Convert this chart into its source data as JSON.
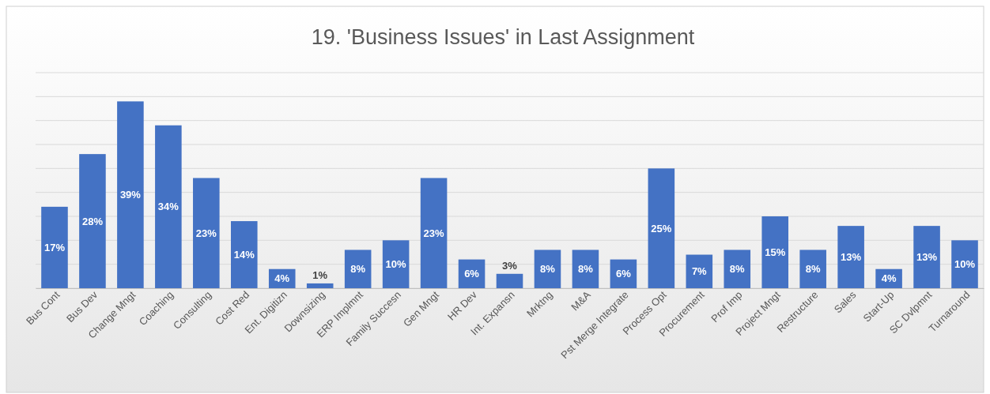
{
  "chart_data": {
    "type": "bar",
    "title": "19. 'Business Issues' in Last Assignment",
    "categories": [
      "Bus Cont",
      "Bus Dev",
      "Change Mngt",
      "Coaching",
      "Consulting",
      "Cost Red",
      "Ent. Digitizn",
      "Downsizing",
      "ERP Implmnt",
      "Family Succesn",
      "Gen Mngt",
      "HR Dev",
      "Int. Expansn",
      "Mrktng",
      "M&A",
      "Pst Merge Integrate",
      "Process Opt",
      "Procurement",
      "Prof Imp",
      "Project Mngt",
      "Restructure",
      "Sales",
      "Start-Up",
      "SC Dvlpmnt",
      "Turnaround"
    ],
    "values": [
      17,
      28,
      39,
      34,
      23,
      14,
      4,
      1,
      8,
      10,
      23,
      6,
      3,
      8,
      8,
      6,
      25,
      7,
      8,
      15,
      8,
      13,
      4,
      13,
      10
    ],
    "value_labels": [
      "17%",
      "28%",
      "39%",
      "34%",
      "23%",
      "14%",
      "4%",
      "1%",
      "8%",
      "10%",
      "23%",
      "6%",
      "3%",
      "8%",
      "8%",
      "6%",
      "25%",
      "7%",
      "8%",
      "15%",
      "8%",
      "13%",
      "4%",
      "13%",
      "10%"
    ],
    "color": "#4472c4",
    "ylim": [
      0,
      45
    ],
    "yticks": [
      {
        "value": 0,
        "label": null
      },
      {
        "value": 5,
        "label": null
      },
      {
        "value": 10,
        "label": null
      },
      {
        "value": 15,
        "label": null
      },
      {
        "value": 20,
        "label": null
      },
      {
        "value": 25,
        "label": null
      },
      {
        "value": 30,
        "label": null
      },
      {
        "value": 35,
        "label": null
      },
      {
        "value": 40,
        "label": null
      },
      {
        "value": 45,
        "label": null
      }
    ],
    "tick_labels": "x",
    "grid": "y"
  }
}
